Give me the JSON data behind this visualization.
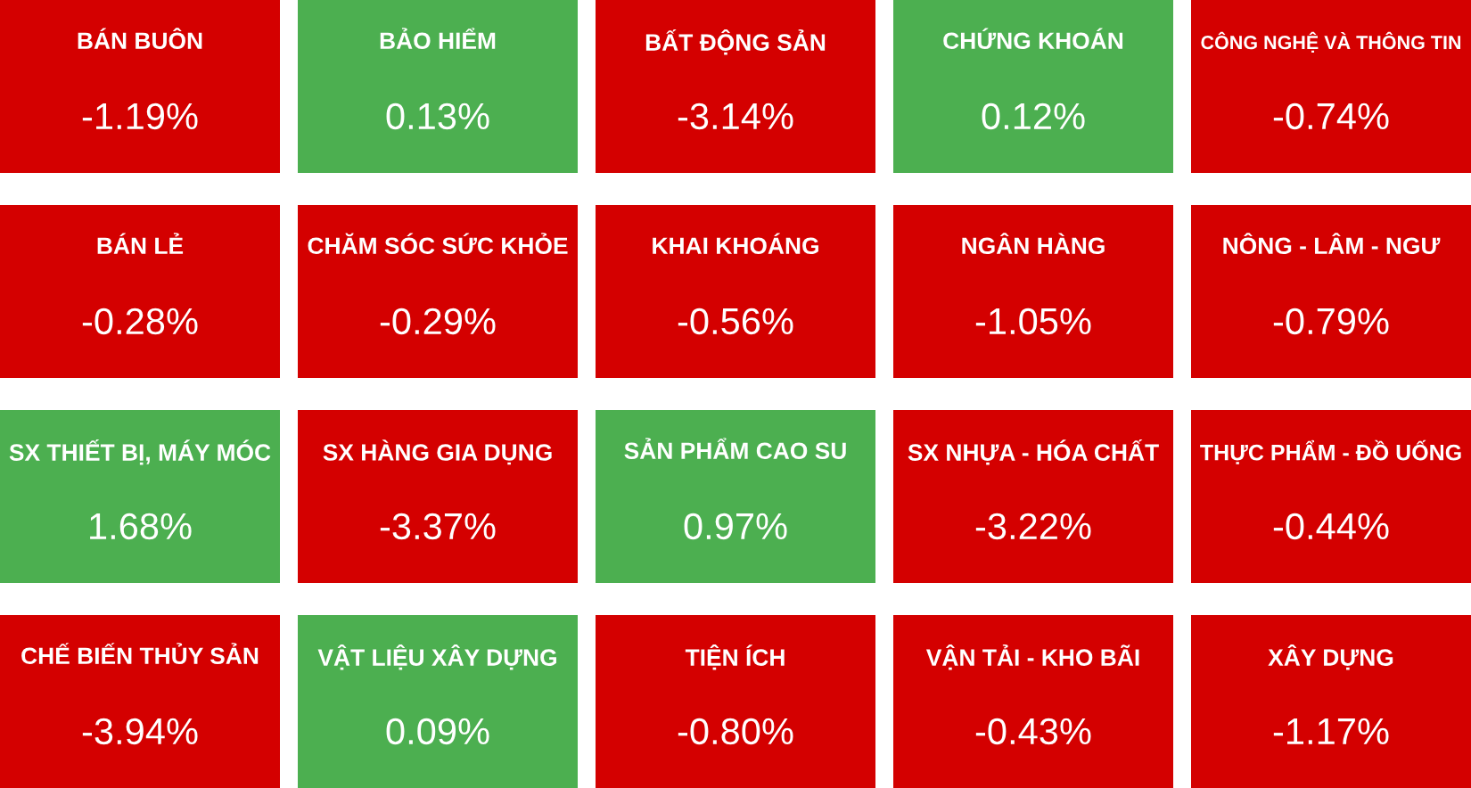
{
  "chart_data": {
    "type": "other",
    "categories": [
      "BÁN BUÔN",
      "BẢO HIỂM",
      "BẤT ĐỘNG SẢN",
      "CHỨNG KHOÁN",
      "CÔNG NGHỆ VÀ THÔNG TIN",
      "BÁN LẺ",
      "CHĂM SÓC SỨC KHỎE",
      "KHAI KHOÁNG",
      "NGÂN HÀNG",
      "NÔNG - LÂM - NGƯ",
      "SX THIẾT BỊ, MÁY MÓC",
      "SX HÀNG GIA DỤNG",
      "SẢN PHẨM CAO SU",
      "SX NHỰA - HÓA CHẤT",
      "THỰC PHẨM - ĐỒ UỐNG",
      "CHẾ BIẾN THỦY SẢN",
      "VẬT LIỆU XÂY DỰNG",
      "TIỆN ÍCH",
      "VẬN TẢI - KHO BÃI",
      "XÂY DỰNG"
    ],
    "values": [
      -1.19,
      0.13,
      -3.14,
      0.12,
      -0.74,
      -0.28,
      -0.29,
      -0.56,
      -1.05,
      -0.79,
      1.68,
      -3.37,
      0.97,
      -3.22,
      -0.44,
      -3.94,
      0.09,
      -0.8,
      -0.43,
      -1.17
    ],
    "value_labels": [
      "-1.19%",
      "0.13%",
      "-3.14%",
      "0.12%",
      "-0.74%",
      "-0.28%",
      "-0.29%",
      "-0.56%",
      "-1.05%",
      "-0.79%",
      "1.68%",
      "-3.37%",
      "0.97%",
      "-3.22%",
      "-0.44%",
      "-3.94%",
      "0.09%",
      "-0.80%",
      "-0.43%",
      "-1.17%"
    ],
    "colors": [
      "#d40000",
      "#4caf50",
      "#d40000",
      "#4caf50",
      "#d40000",
      "#d40000",
      "#d40000",
      "#d40000",
      "#d40000",
      "#d40000",
      "#4caf50",
      "#d40000",
      "#4caf50",
      "#d40000",
      "#d40000",
      "#d40000",
      "#4caf50",
      "#d40000",
      "#d40000",
      "#d40000"
    ]
  }
}
